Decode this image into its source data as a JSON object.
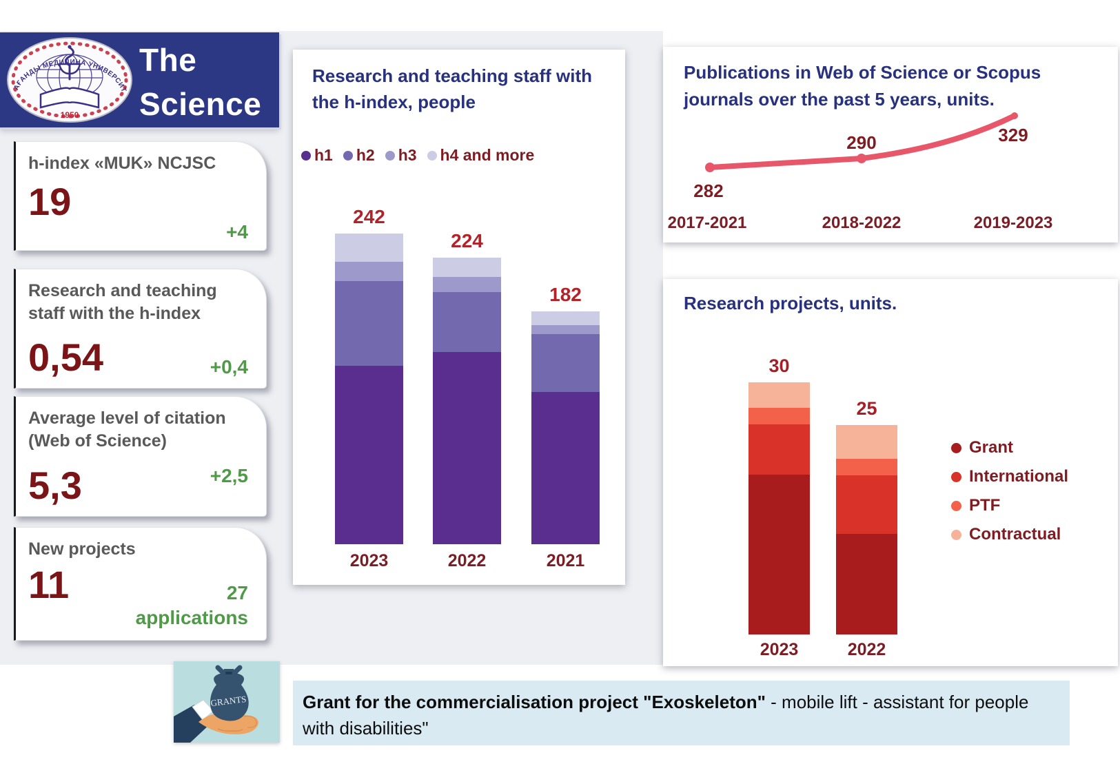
{
  "header": {
    "title_line1": "The",
    "title_line2": "Science",
    "logo": {
      "arc_text": "ҚАРАҒАНДЫ МЕДИЦИНА УНИВЕРСИТЕТІ",
      "year": "1950"
    }
  },
  "kpi_cards": [
    {
      "title": "h-index «MUK» NCJSC",
      "value": "19",
      "delta": "+4"
    },
    {
      "title": "Research and teaching staff with the h-index",
      "value": "0,54",
      "delta": "+0,4"
    },
    {
      "title": "Average level of citation (Web of Science)",
      "value": "5,3",
      "delta": "+2,5"
    },
    {
      "title": "New projects",
      "value": "11",
      "delta": "27",
      "delta_suffix": "applications"
    }
  ],
  "chart_data": [
    {
      "type": "bar",
      "stacked": true,
      "title": "Research and teaching staff with the h-index, people",
      "categories": [
        "2023",
        "2022",
        "2021"
      ],
      "series": [
        {
          "name": "h1",
          "color": "#5a2e8f",
          "values": [
            139,
            150,
            119
          ]
        },
        {
          "name": "h2",
          "color": "#7269ae",
          "values": [
            66,
            47,
            45
          ]
        },
        {
          "name": "h3",
          "color": "#9e99cb",
          "values": [
            15,
            12,
            7
          ]
        },
        {
          "name": "h4 and more",
          "color": "#cdcce5",
          "values": [
            22,
            15,
            11
          ]
        }
      ],
      "totals": [
        242,
        224,
        182
      ],
      "legend_position": "top",
      "grid": false
    },
    {
      "type": "line",
      "title": "Publications in Web of Science or Scopus journals over the past 5 years, units.",
      "categories": [
        "2017-2021",
        "2018-2022",
        "2019-2023"
      ],
      "values": [
        282,
        290,
        329
      ],
      "line_color": "#e8566a",
      "grid": false,
      "legend_position": "none"
    },
    {
      "type": "bar",
      "stacked": true,
      "title": "Research projects, units.",
      "categories": [
        "2023",
        "2022"
      ],
      "series": [
        {
          "name": "Grant",
          "color": "#a81c1d",
          "values": [
            19,
            12
          ]
        },
        {
          "name": "International",
          "color": "#d93229",
          "values": [
            6,
            7
          ]
        },
        {
          "name": "PTF",
          "color": "#f3614a",
          "values": [
            2,
            2
          ]
        },
        {
          "name": "Contractual",
          "color": "#f7b29a",
          "values": [
            3,
            4
          ]
        }
      ],
      "totals": [
        30,
        25
      ],
      "legend_position": "right",
      "grid": false
    }
  ],
  "banner": {
    "image_label": "GRANTS",
    "bold": "Grant for the commercialisation project \"Exoskeleton\"",
    "rest": " - mobile lift - assistant for people with disabilities\""
  }
}
